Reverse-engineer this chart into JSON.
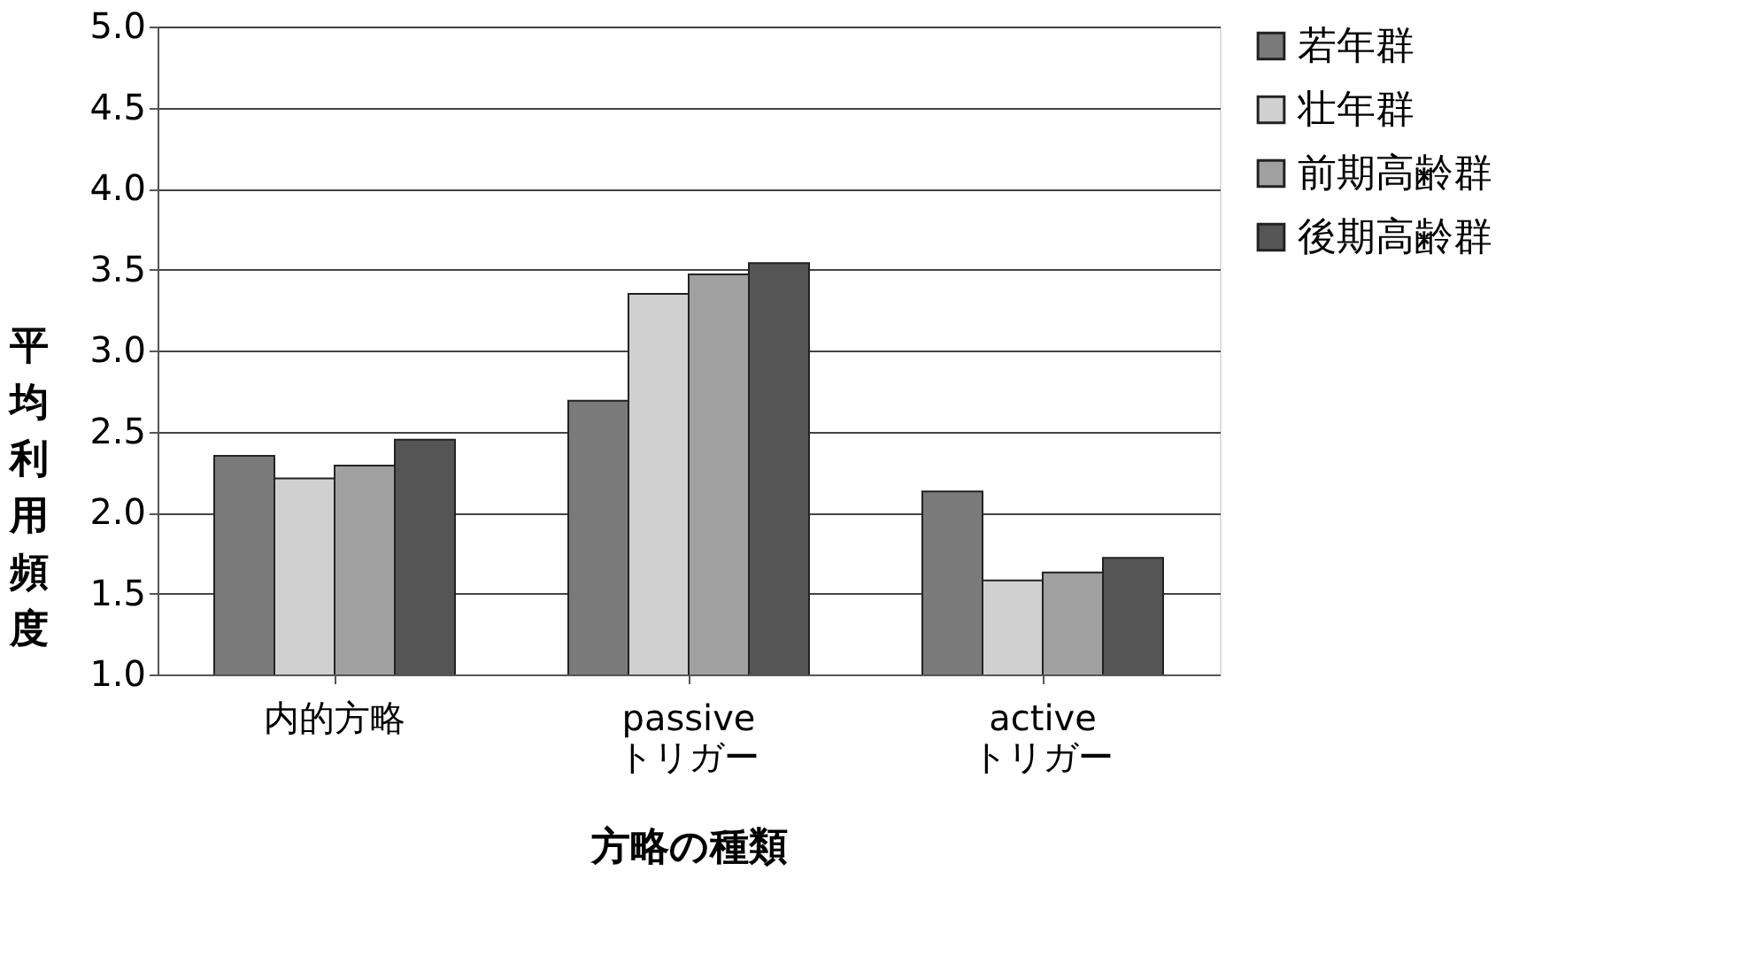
{
  "chart_data": {
    "type": "bar",
    "xlabel": "方略の種類",
    "ylabel": "平均利用頻度",
    "categories": [
      "内的方略",
      "passive\nトリガー",
      "active\nトリガー"
    ],
    "series": [
      {
        "name": "若年群",
        "color": "#7a7a7a",
        "values": [
          2.35,
          2.69,
          2.13
        ]
      },
      {
        "name": "壮年群",
        "color": "#d0d0d0",
        "values": [
          2.21,
          3.35,
          1.58
        ]
      },
      {
        "name": "前期高齢群",
        "color": "#a0a0a0",
        "values": [
          2.29,
          3.47,
          1.63
        ]
      },
      {
        "name": "後期高齢群",
        "color": "#555555",
        "values": [
          2.45,
          3.54,
          1.72
        ]
      }
    ],
    "ylim": [
      1.0,
      5.0
    ],
    "yticks": [
      {
        "value": 1.0,
        "label": "1.0"
      },
      {
        "value": 1.5,
        "label": "1.5"
      },
      {
        "value": 2.0,
        "label": "2.0"
      },
      {
        "value": 2.5,
        "label": "2.5"
      },
      {
        "value": 3.0,
        "label": "3.0"
      },
      {
        "value": 3.5,
        "label": "3.5"
      },
      {
        "value": 4.0,
        "label": "4.0"
      },
      {
        "value": 4.5,
        "label": "4.5"
      },
      {
        "value": 5.0,
        "label": "5.0"
      }
    ],
    "grid": "y",
    "legend": "right"
  }
}
